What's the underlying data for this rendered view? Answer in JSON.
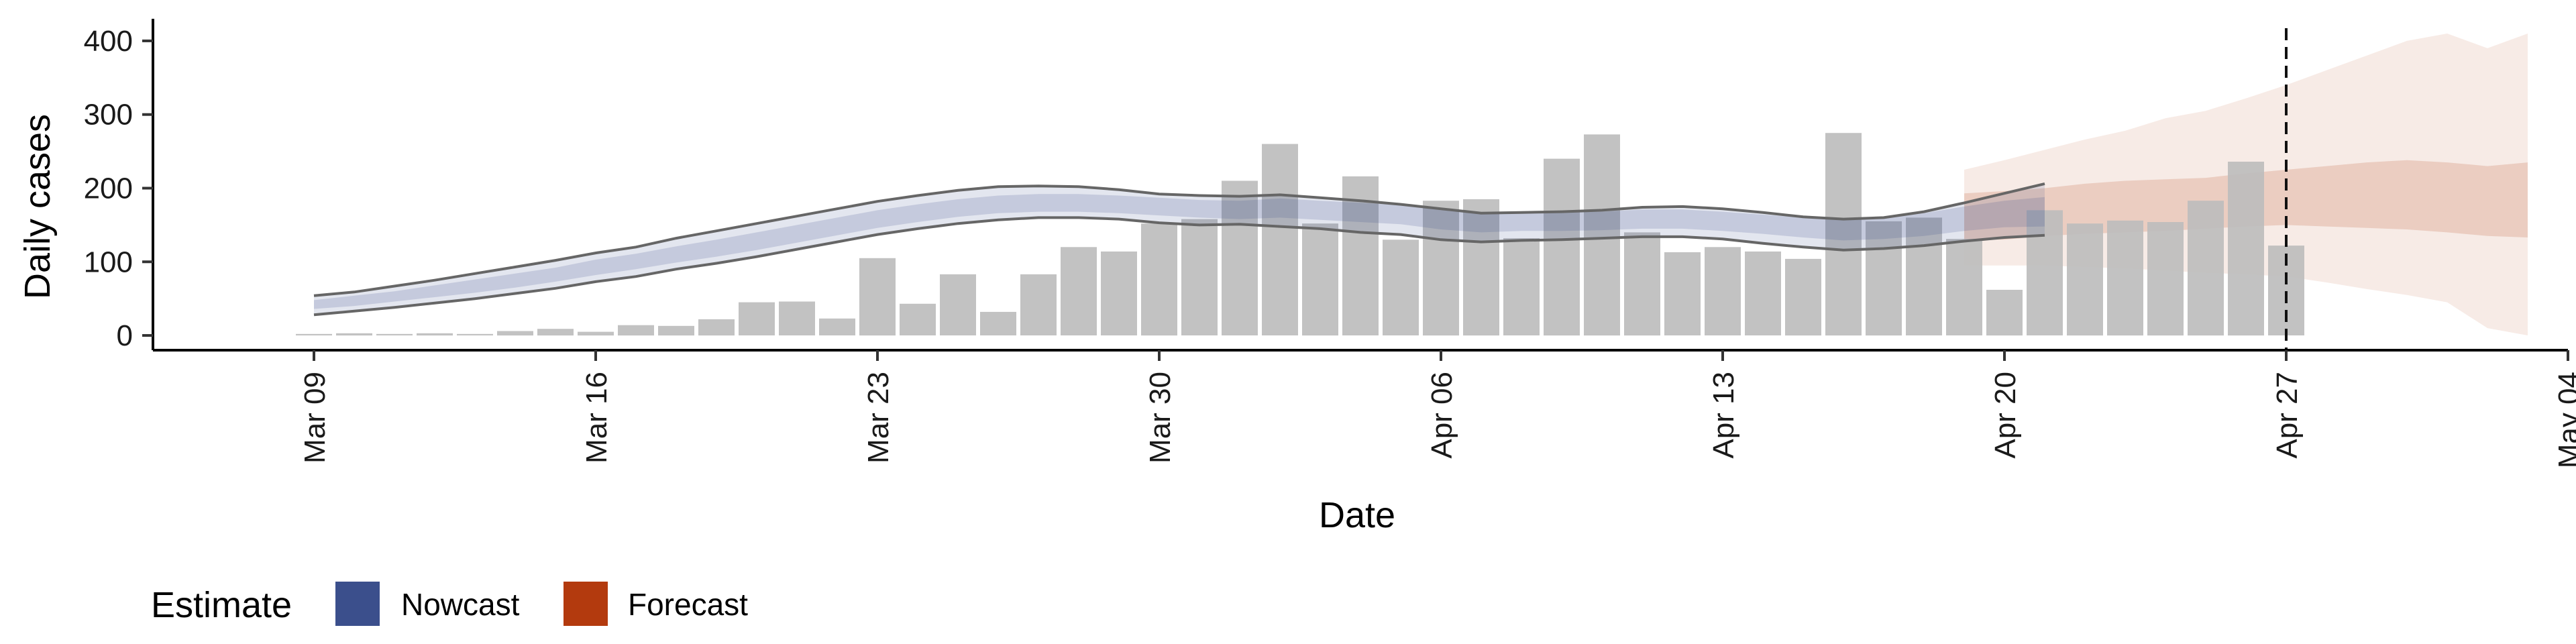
{
  "chart_data": {
    "type": "bar",
    "title": "",
    "xlabel": "Date",
    "ylabel": "Daily cases",
    "x_axis": {
      "type": "date",
      "range": [
        "2020-03-05",
        "2020-05-04"
      ],
      "ticks": [
        {
          "date": "2020-03-09",
          "label": "Mar 09"
        },
        {
          "date": "2020-03-16",
          "label": "Mar 16"
        },
        {
          "date": "2020-03-23",
          "label": "Mar 23"
        },
        {
          "date": "2020-03-30",
          "label": "Mar 30"
        },
        {
          "date": "2020-04-06",
          "label": "Apr 06"
        },
        {
          "date": "2020-04-13",
          "label": "Apr 13"
        },
        {
          "date": "2020-04-20",
          "label": "Apr 20"
        },
        {
          "date": "2020-04-27",
          "label": "Apr 27"
        },
        {
          "date": "2020-05-04",
          "label": "May 04"
        }
      ]
    },
    "y_axis": {
      "range": [
        -20,
        430
      ],
      "ticks": [
        0,
        100,
        200,
        300,
        400
      ]
    },
    "grid": false,
    "legend": {
      "position": "bottom-left",
      "title": "Estimate",
      "entries": [
        {
          "label": "Nowcast",
          "color": "#3b4f8c"
        },
        {
          "label": "Forecast",
          "color": "#b33a0e"
        }
      ]
    },
    "reference_line": {
      "date": "2020-04-27",
      "style": "dashed"
    },
    "bar_color": "#bdbdbd",
    "reported_cases": {
      "start_date": "2020-03-09",
      "values": [
        2,
        3,
        2,
        3,
        2,
        6,
        9,
        5,
        14,
        13,
        22,
        45,
        46,
        23,
        105,
        43,
        83,
        32,
        83,
        120,
        114,
        152,
        158,
        210,
        260,
        152,
        216,
        130,
        183,
        185,
        132,
        240,
        273,
        140,
        113,
        120,
        114,
        104,
        275,
        155,
        160,
        131,
        62,
        170,
        152,
        156,
        154,
        183,
        236,
        122
      ]
    },
    "nowcast": {
      "start_date": "2020-03-09",
      "median": [
        42,
        47,
        53,
        60,
        67,
        74,
        82,
        92,
        100,
        110,
        118,
        128,
        138,
        148,
        158,
        166,
        173,
        178,
        180,
        180,
        178,
        175,
        172,
        171,
        173,
        170,
        167,
        164,
        157,
        153,
        155,
        155,
        155,
        158,
        158,
        155,
        151,
        147,
        143,
        145,
        150,
        158,
        165,
        168
      ],
      "lower_50": [
        36,
        40,
        46,
        52,
        58,
        65,
        73,
        82,
        90,
        99,
        107,
        116,
        126,
        136,
        146,
        154,
        161,
        166,
        168,
        168,
        166,
        163,
        160,
        158,
        160,
        157,
        154,
        151,
        144,
        140,
        142,
        142,
        143,
        145,
        145,
        142,
        138,
        133,
        129,
        131,
        135,
        142,
        147,
        148
      ],
      "upper_50": [
        48,
        54,
        60,
        68,
        76,
        84,
        92,
        103,
        111,
        121,
        130,
        140,
        150,
        160,
        170,
        178,
        185,
        190,
        192,
        192,
        190,
        187,
        184,
        183,
        186,
        183,
        180,
        177,
        170,
        166,
        168,
        168,
        168,
        171,
        171,
        168,
        164,
        160,
        157,
        159,
        166,
        175,
        183,
        188
      ],
      "lower_90": [
        28,
        33,
        38,
        44,
        50,
        57,
        64,
        73,
        80,
        90,
        98,
        107,
        117,
        127,
        137,
        145,
        152,
        157,
        160,
        160,
        158,
        153,
        150,
        151,
        148,
        145,
        140,
        137,
        130,
        127,
        129,
        130,
        132,
        134,
        134,
        131,
        125,
        120,
        116,
        118,
        122,
        128,
        133,
        136
      ],
      "upper_90": [
        54,
        59,
        67,
        75,
        84,
        93,
        102,
        112,
        120,
        132,
        142,
        152,
        162,
        172,
        182,
        190,
        197,
        202,
        203,
        202,
        198,
        192,
        190,
        189,
        191,
        187,
        183,
        178,
        172,
        166,
        167,
        168,
        170,
        174,
        175,
        172,
        167,
        161,
        158,
        160,
        168,
        180,
        193,
        206
      ]
    },
    "forecast": {
      "start_date": "2020-04-19",
      "median": [
        160,
        160,
        165,
        168,
        172,
        175,
        180,
        185,
        190,
        190,
        188,
        186,
        184,
        178,
        178
      ],
      "lower_50": [
        130,
        130,
        135,
        138,
        140,
        142,
        145,
        148,
        150,
        148,
        146,
        144,
        140,
        135,
        133
      ],
      "upper_50": [
        193,
        196,
        200,
        206,
        210,
        212,
        214,
        220,
        225,
        230,
        235,
        238,
        235,
        230,
        235
      ],
      "lower_90": [
        95,
        95,
        95,
        93,
        91,
        88,
        85,
        83,
        80,
        72,
        63,
        55,
        45,
        10,
        0
      ],
      "upper_90": [
        225,
        238,
        252,
        266,
        278,
        295,
        305,
        322,
        340,
        360,
        380,
        400,
        410,
        390,
        410
      ]
    }
  }
}
